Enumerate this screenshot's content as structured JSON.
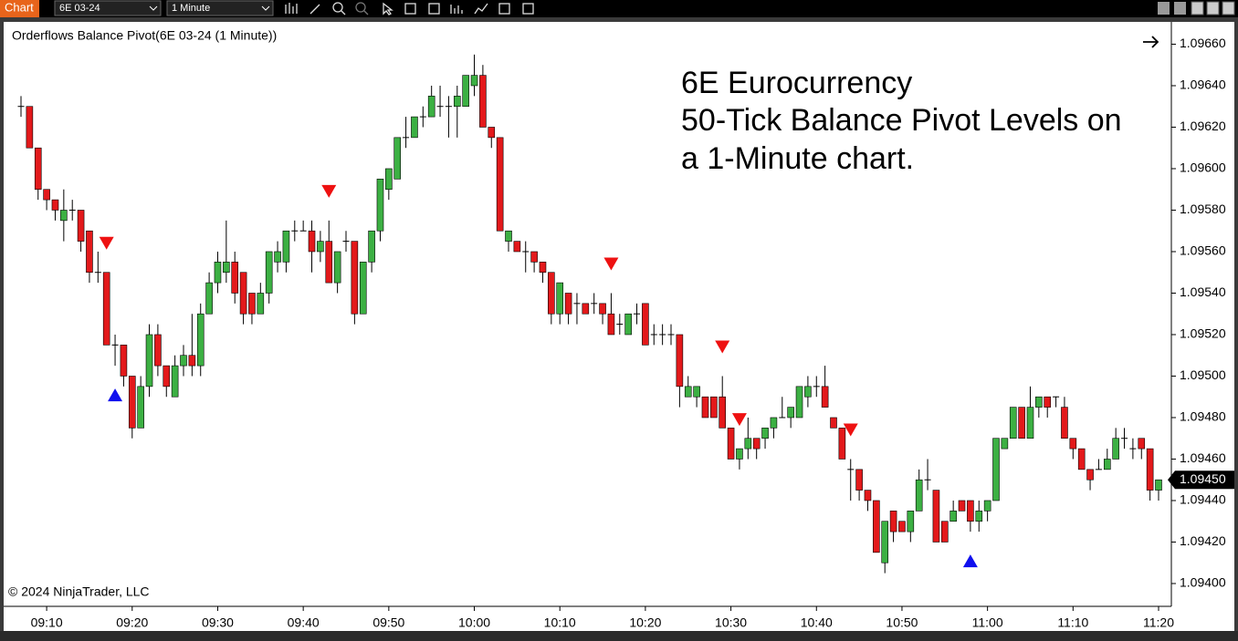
{
  "toolbar": {
    "tab": "Chart",
    "instrument": "6E 03-24",
    "interval": "1 Minute"
  },
  "chart_data": {
    "type": "candlestick",
    "title": "Orderflows Balance Pivot(6E 03-24 (1 Minute))",
    "annotation": [
      "6E Eurocurrency",
      "50-Tick Balance Pivot Levels on",
      "a 1-Minute chart."
    ],
    "copyright": "© 2024 NinjaTrader, LLC",
    "x": [
      "09:07",
      "09:08",
      "09:09",
      "09:10",
      "09:11",
      "09:12",
      "09:13",
      "09:14",
      "09:15",
      "09:16",
      "09:17",
      "09:18",
      "09:19",
      "09:20",
      "09:21",
      "09:22",
      "09:23",
      "09:24",
      "09:25",
      "09:26",
      "09:27",
      "09:28",
      "09:29",
      "09:30",
      "09:31",
      "09:32",
      "09:33",
      "09:34",
      "09:35",
      "09:36",
      "09:37",
      "09:38",
      "09:39",
      "09:40",
      "09:41",
      "09:42",
      "09:43",
      "09:44",
      "09:45",
      "09:46",
      "09:47",
      "09:48",
      "09:49",
      "09:50",
      "09:51",
      "09:52",
      "09:53",
      "09:54",
      "09:55",
      "09:56",
      "09:57",
      "09:58",
      "09:59",
      "10:00",
      "10:01",
      "10:02",
      "10:03",
      "10:04",
      "10:05",
      "10:06",
      "10:07",
      "10:08",
      "10:09",
      "10:10",
      "10:11",
      "10:12",
      "10:13",
      "10:14",
      "10:15",
      "10:16",
      "10:17",
      "10:18",
      "10:19",
      "10:20",
      "10:21",
      "10:22",
      "10:23",
      "10:24",
      "10:25",
      "10:26",
      "10:27",
      "10:28",
      "10:29",
      "10:30",
      "10:31",
      "10:32",
      "10:33",
      "10:34",
      "10:35",
      "10:36",
      "10:37",
      "10:38",
      "10:39",
      "10:40",
      "10:41",
      "10:42",
      "10:43",
      "10:44",
      "10:45",
      "10:46",
      "10:47",
      "10:48",
      "10:49",
      "10:50",
      "10:51",
      "10:52",
      "10:53",
      "10:54",
      "10:55",
      "10:56",
      "10:57",
      "10:58",
      "10:59",
      "11:00",
      "11:01",
      "11:02",
      "11:03",
      "11:04",
      "11:05",
      "11:06",
      "11:07",
      "11:08",
      "11:09",
      "11:10",
      "11:11",
      "11:12",
      "11:13",
      "11:14",
      "11:15",
      "11:16",
      "11:17",
      "11:18",
      "11:19",
      "11:20"
    ],
    "open": [
      1.0963,
      1.0963,
      1.0961,
      1.0959,
      1.09585,
      1.09575,
      1.0958,
      1.0958,
      1.0957,
      1.0955,
      1.0955,
      1.09515,
      1.09515,
      1.095,
      1.09475,
      1.09495,
      1.0952,
      1.09505,
      1.0949,
      1.09505,
      1.0951,
      1.09505,
      1.0953,
      1.09545,
      1.0955,
      1.09555,
      1.0955,
      1.0954,
      1.0953,
      1.0954,
      1.09555,
      1.09555,
      1.0957,
      1.0957,
      1.0957,
      1.0956,
      1.09565,
      1.09545,
      1.09565,
      1.09565,
      1.0953,
      1.09555,
      1.0957,
      1.0959,
      1.09595,
      1.09615,
      1.09615,
      1.09625,
      1.09625,
      1.0963,
      1.0963,
      1.0963,
      1.0963,
      1.0964,
      1.09645,
      1.0962,
      1.09615,
      1.09565,
      1.09565,
      1.0956,
      1.0956,
      1.09555,
      1.0955,
      1.0953,
      1.0954,
      1.09535,
      1.09535,
      1.09535,
      1.09535,
      1.0953,
      1.09525,
      1.0952,
      1.0953,
      1.09535,
      1.0952,
      1.0952,
      1.0952,
      1.0952,
      1.0949,
      1.0949,
      1.0949,
      1.0949,
      1.0949,
      1.09475,
      1.0946,
      1.09465,
      1.0947,
      1.0947,
      1.09475,
      1.0948,
      1.0948,
      1.0948,
      1.0949,
      1.09495,
      1.09495,
      1.0948,
      1.09475,
      1.09455,
      1.09455,
      1.09445,
      1.0944,
      1.0941,
      1.09435,
      1.0943,
      1.09425,
      1.09435,
      1.0945,
      1.09445,
      1.0943,
      1.0943,
      1.0944,
      1.0944,
      1.0943,
      1.09435,
      1.0944,
      1.09465,
      1.0947,
      1.09485,
      1.0947,
      1.09485,
      1.0949,
      1.0949,
      1.09485,
      1.0947,
      1.09465,
      1.09455,
      1.09455,
      1.09455,
      1.0946,
      1.0947,
      1.09465,
      1.0947,
      1.09465,
      1.09445
    ],
    "high": [
      1.09635,
      1.0963,
      1.0961,
      1.0959,
      1.09585,
      1.0959,
      1.09585,
      1.0958,
      1.0957,
      1.0956,
      1.0955,
      1.0952,
      1.09515,
      1.095,
      1.095,
      1.09525,
      1.09525,
      1.09505,
      1.0951,
      1.09515,
      1.0953,
      1.09535,
      1.0955,
      1.0956,
      1.09575,
      1.0956,
      1.0955,
      1.0954,
      1.09545,
      1.0956,
      1.09565,
      1.0957,
      1.09575,
      1.09575,
      1.09575,
      1.0957,
      1.09575,
      1.0956,
      1.0957,
      1.09565,
      1.09555,
      1.0957,
      1.09595,
      1.096,
      1.09615,
      1.09625,
      1.09625,
      1.0963,
      1.0964,
      1.0964,
      1.09635,
      1.0964,
      1.09645,
      1.09655,
      1.0965,
      1.0962,
      1.09615,
      1.0957,
      1.09565,
      1.09565,
      1.0956,
      1.09555,
      1.0955,
      1.09545,
      1.0954,
      1.0954,
      1.09535,
      1.0954,
      1.09535,
      1.0954,
      1.0953,
      1.0953,
      1.09535,
      1.09535,
      1.09525,
      1.09525,
      1.09525,
      1.0952,
      1.095,
      1.09495,
      1.0949,
      1.0949,
      1.095,
      1.09475,
      1.09465,
      1.0948,
      1.0947,
      1.09475,
      1.0948,
      1.0949,
      1.09485,
      1.09495,
      1.095,
      1.095,
      1.09505,
      1.0948,
      1.09475,
      1.0946,
      1.09455,
      1.09445,
      1.0944,
      1.0943,
      1.09435,
      1.0943,
      1.09435,
      1.09455,
      1.0946,
      1.09445,
      1.0943,
      1.0944,
      1.0944,
      1.0944,
      1.0944,
      1.0944,
      1.0947,
      1.0947,
      1.09485,
      1.09485,
      1.09495,
      1.0949,
      1.0949,
      1.0949,
      1.0949,
      1.0947,
      1.09465,
      1.09455,
      1.0946,
      1.09465,
      1.09475,
      1.09475,
      1.0947,
      1.0947,
      1.09465,
      1.0945
    ],
    "low": [
      1.09625,
      1.0961,
      1.09585,
      1.0958,
      1.09575,
      1.09565,
      1.09575,
      1.0956,
      1.09545,
      1.09545,
      1.09515,
      1.09505,
      1.09495,
      1.0947,
      1.09475,
      1.0949,
      1.095,
      1.0949,
      1.0949,
      1.095,
      1.095,
      1.095,
      1.0953,
      1.0954,
      1.09545,
      1.09535,
      1.09525,
      1.09525,
      1.0953,
      1.09535,
      1.0955,
      1.0955,
      1.09565,
      1.0957,
      1.0955,
      1.09555,
      1.09545,
      1.0954,
      1.0956,
      1.09525,
      1.0953,
      1.0955,
      1.09565,
      1.09585,
      1.09595,
      1.0961,
      1.09615,
      1.0962,
      1.09625,
      1.09625,
      1.09615,
      1.09615,
      1.0963,
      1.09635,
      1.0962,
      1.0961,
      1.0957,
      1.0956,
      1.0956,
      1.0955,
      1.0955,
      1.09545,
      1.09525,
      1.09525,
      1.09525,
      1.09525,
      1.0953,
      1.0953,
      1.09525,
      1.0952,
      1.0952,
      1.0952,
      1.09525,
      1.09515,
      1.09515,
      1.09515,
      1.09515,
      1.09485,
      1.0949,
      1.09485,
      1.0948,
      1.0948,
      1.09475,
      1.0946,
      1.09455,
      1.0946,
      1.0946,
      1.09465,
      1.0947,
      1.0948,
      1.09475,
      1.0948,
      1.09485,
      1.0949,
      1.09485,
      1.09475,
      1.0946,
      1.0944,
      1.0944,
      1.09435,
      1.09415,
      1.09405,
      1.0942,
      1.09425,
      1.0942,
      1.09435,
      1.09445,
      1.0942,
      1.0942,
      1.0943,
      1.09435,
      1.09425,
      1.09425,
      1.0943,
      1.0944,
      1.09465,
      1.0947,
      1.0947,
      1.0947,
      1.0948,
      1.0948,
      1.09485,
      1.0947,
      1.0946,
      1.09455,
      1.09445,
      1.09455,
      1.09455,
      1.0946,
      1.09465,
      1.0946,
      1.0946,
      1.0944,
      1.0944
    ],
    "close": [
      1.0963,
      1.0961,
      1.0959,
      1.09585,
      1.0958,
      1.0958,
      1.0958,
      1.09565,
      1.0955,
      1.0955,
      1.09515,
      1.09515,
      1.095,
      1.09475,
      1.09495,
      1.0952,
      1.09505,
      1.09495,
      1.09505,
      1.0951,
      1.09505,
      1.0953,
      1.09545,
      1.09555,
      1.09555,
      1.0954,
      1.0953,
      1.0953,
      1.0954,
      1.0956,
      1.0956,
      1.0957,
      1.0957,
      1.0957,
      1.0956,
      1.09565,
      1.09545,
      1.0956,
      1.09565,
      1.0953,
      1.09555,
      1.0957,
      1.09595,
      1.096,
      1.09615,
      1.09615,
      1.09625,
      1.09625,
      1.09635,
      1.0963,
      1.0963,
      1.09635,
      1.09645,
      1.09645,
      1.0962,
      1.09615,
      1.0957,
      1.0957,
      1.0956,
      1.0956,
      1.09555,
      1.0955,
      1.0953,
      1.09545,
      1.0953,
      1.09535,
      1.0953,
      1.09535,
      1.0953,
      1.0952,
      1.09525,
      1.0953,
      1.0953,
      1.09515,
      1.0952,
      1.0952,
      1.0952,
      1.09495,
      1.09495,
      1.09495,
      1.0948,
      1.0948,
      1.09475,
      1.0946,
      1.09465,
      1.0947,
      1.09465,
      1.09475,
      1.0948,
      1.0948,
      1.09485,
      1.09495,
      1.09495,
      1.09495,
      1.09485,
      1.09475,
      1.0946,
      1.09455,
      1.09445,
      1.0944,
      1.09415,
      1.0943,
      1.09425,
      1.09425,
      1.09435,
      1.0945,
      1.0945,
      1.0942,
      1.0942,
      1.09435,
      1.09435,
      1.0943,
      1.09435,
      1.0944,
      1.0947,
      1.0947,
      1.09485,
      1.0947,
      1.09485,
      1.0949,
      1.09485,
      1.0949,
      1.0947,
      1.09465,
      1.09455,
      1.0945,
      1.09455,
      1.0946,
      1.0947,
      1.0947,
      1.09465,
      1.09465,
      1.09445,
      1.0945
    ],
    "up_color": "#3cb043",
    "down_color": "#e3191b",
    "down_markers": [
      "09:17",
      "09:43",
      "10:16",
      "10:29",
      "10:31",
      "10:44"
    ],
    "down_marker_color": "#ee1111",
    "up_markers": [
      "09:18",
      "10:58"
    ],
    "up_marker_color": "#1010ee",
    "xticks": [
      "09:10",
      "09:20",
      "09:30",
      "09:40",
      "09:50",
      "10:00",
      "10:10",
      "10:20",
      "10:30",
      "10:40",
      "10:50",
      "11:00",
      "11:10",
      "11:20"
    ],
    "ylim": [
      1.09389,
      1.09669
    ],
    "yticks": [
      {
        "value": 1.094,
        "label": "1.09400"
      },
      {
        "value": 1.0942,
        "label": "1.09420"
      },
      {
        "value": 1.0944,
        "label": "1.09440"
      },
      {
        "value": 1.0946,
        "label": "1.09460"
      },
      {
        "value": 1.0948,
        "label": "1.09480"
      },
      {
        "value": 1.095,
        "label": "1.09500"
      },
      {
        "value": 1.0952,
        "label": "1.09520"
      },
      {
        "value": 1.0954,
        "label": "1.09540"
      },
      {
        "value": 1.0956,
        "label": "1.09560"
      },
      {
        "value": 1.0958,
        "label": "1.09580"
      },
      {
        "value": 1.096,
        "label": "1.09600"
      },
      {
        "value": 1.0962,
        "label": "1.09620"
      },
      {
        "value": 1.0964,
        "label": "1.09640"
      },
      {
        "value": 1.0966,
        "label": "1.09660"
      }
    ],
    "last_price": {
      "value": 1.0945,
      "label": "1.09450"
    },
    "grid": false
  }
}
